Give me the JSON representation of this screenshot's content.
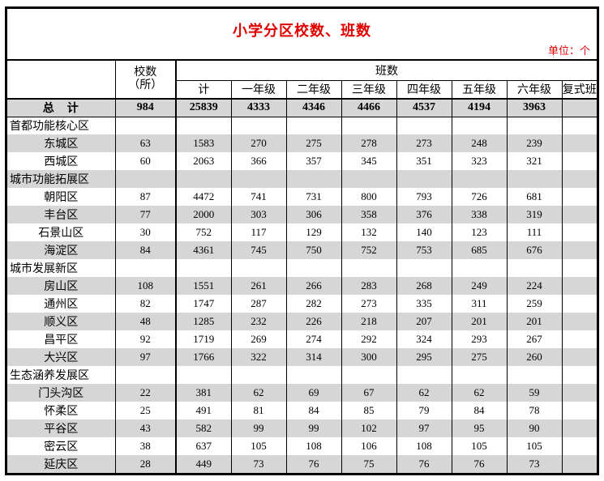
{
  "title": "小学分区校数、班数",
  "unit_label": "单位：个",
  "colors": {
    "accent_red": "#e00000",
    "band_gray": "#d6d6d6",
    "border_black": "#000000"
  },
  "table": {
    "header": {
      "school_count_line1": "校数",
      "school_count_line2": "（所）",
      "class_group": "班数",
      "sub_columns": [
        "计",
        "一年级",
        "二年级",
        "三年级",
        "四年级",
        "五年级",
        "六年级",
        "复式班"
      ]
    },
    "rows": [
      {
        "label": "总　计",
        "type": "total",
        "values": [
          "984",
          "25839",
          "4333",
          "4346",
          "4466",
          "4537",
          "4194",
          "3963",
          ""
        ]
      },
      {
        "label": "首都功能核心区",
        "type": "group",
        "values": [
          "",
          "",
          "",
          "",
          "",
          "",
          "",
          "",
          ""
        ]
      },
      {
        "label": "东城区",
        "type": "district",
        "values": [
          "63",
          "1583",
          "270",
          "275",
          "278",
          "273",
          "248",
          "239",
          ""
        ]
      },
      {
        "label": "西城区",
        "type": "district",
        "values": [
          "60",
          "2063",
          "366",
          "357",
          "345",
          "351",
          "323",
          "321",
          ""
        ]
      },
      {
        "label": "城市功能拓展区",
        "type": "group",
        "values": [
          "",
          "",
          "",
          "",
          "",
          "",
          "",
          "",
          ""
        ]
      },
      {
        "label": "朝阳区",
        "type": "district",
        "values": [
          "87",
          "4472",
          "741",
          "731",
          "800",
          "793",
          "726",
          "681",
          ""
        ]
      },
      {
        "label": "丰台区",
        "type": "district",
        "values": [
          "77",
          "2000",
          "303",
          "306",
          "358",
          "376",
          "338",
          "319",
          ""
        ]
      },
      {
        "label": "石景山区",
        "type": "district",
        "values": [
          "30",
          "752",
          "117",
          "129",
          "132",
          "140",
          "123",
          "111",
          ""
        ]
      },
      {
        "label": "海淀区",
        "type": "district",
        "values": [
          "84",
          "4361",
          "745",
          "750",
          "752",
          "753",
          "685",
          "676",
          ""
        ]
      },
      {
        "label": "城市发展新区",
        "type": "group",
        "values": [
          "",
          "",
          "",
          "",
          "",
          "",
          "",
          "",
          ""
        ]
      },
      {
        "label": "房山区",
        "type": "district",
        "values": [
          "108",
          "1551",
          "261",
          "266",
          "283",
          "268",
          "249",
          "224",
          ""
        ]
      },
      {
        "label": "通州区",
        "type": "district",
        "values": [
          "82",
          "1747",
          "287",
          "282",
          "273",
          "335",
          "311",
          "259",
          ""
        ]
      },
      {
        "label": "顺义区",
        "type": "district",
        "values": [
          "48",
          "1285",
          "232",
          "226",
          "218",
          "207",
          "201",
          "201",
          ""
        ]
      },
      {
        "label": "昌平区",
        "type": "district",
        "values": [
          "92",
          "1719",
          "269",
          "274",
          "292",
          "324",
          "293",
          "267",
          ""
        ]
      },
      {
        "label": "大兴区",
        "type": "district",
        "values": [
          "97",
          "1766",
          "322",
          "314",
          "300",
          "295",
          "275",
          "260",
          ""
        ]
      },
      {
        "label": "生态涵养发展区",
        "type": "group",
        "values": [
          "",
          "",
          "",
          "",
          "",
          "",
          "",
          "",
          ""
        ]
      },
      {
        "label": "门头沟区",
        "type": "district",
        "values": [
          "22",
          "381",
          "62",
          "69",
          "67",
          "62",
          "62",
          "59",
          ""
        ]
      },
      {
        "label": "怀柔区",
        "type": "district",
        "values": [
          "25",
          "491",
          "81",
          "84",
          "85",
          "79",
          "84",
          "78",
          ""
        ]
      },
      {
        "label": "平谷区",
        "type": "district",
        "values": [
          "43",
          "582",
          "99",
          "99",
          "102",
          "97",
          "95",
          "90",
          ""
        ]
      },
      {
        "label": "密云区",
        "type": "district",
        "values": [
          "38",
          "637",
          "105",
          "108",
          "106",
          "108",
          "105",
          "105",
          ""
        ]
      },
      {
        "label": "延庆区",
        "type": "district",
        "values": [
          "28",
          "449",
          "73",
          "76",
          "75",
          "76",
          "76",
          "73",
          ""
        ]
      }
    ]
  }
}
